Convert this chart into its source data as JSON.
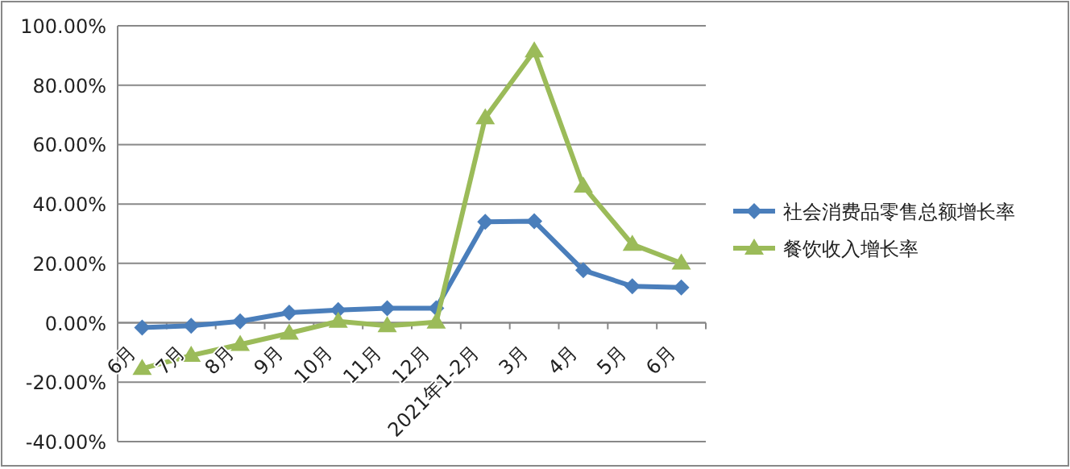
{
  "chart_data": {
    "type": "line",
    "categories": [
      "6月",
      "7月",
      "8月",
      "9月",
      "10月",
      "11月",
      "12月",
      "2021年1-2月",
      "3月",
      "4月",
      "5月",
      "6月"
    ],
    "series": [
      {
        "name": "社会消费品零售总额增长率",
        "color": "#4a7ebb",
        "marker": "diamond",
        "values": [
          -1.6,
          -1.0,
          0.5,
          3.4,
          4.3,
          4.9,
          4.9,
          34,
          34.2,
          17.7,
          12.3,
          11.9
        ]
      },
      {
        "name": "餐饮收入增长率",
        "color": "#9bbb59",
        "marker": "triangle",
        "values": [
          -15.4,
          -11.0,
          -7.3,
          -3.5,
          0.5,
          -1.0,
          0.2,
          69,
          91.5,
          46,
          26.4,
          20.1
        ]
      }
    ],
    "ylim": [
      -40,
      100
    ],
    "yticks": [
      {
        "value": -40,
        "label": "-40.00%"
      },
      {
        "value": -20,
        "label": "-20.00%"
      },
      {
        "value": 0,
        "label": "0.00%"
      },
      {
        "value": 20,
        "label": "20.00%"
      },
      {
        "value": 40,
        "label": "40.00%"
      },
      {
        "value": 60,
        "label": "60.00%"
      },
      {
        "value": 80,
        "label": "80.00%"
      },
      {
        "value": 100,
        "label": "100.00%"
      }
    ],
    "grid": "y",
    "legend": "right"
  }
}
